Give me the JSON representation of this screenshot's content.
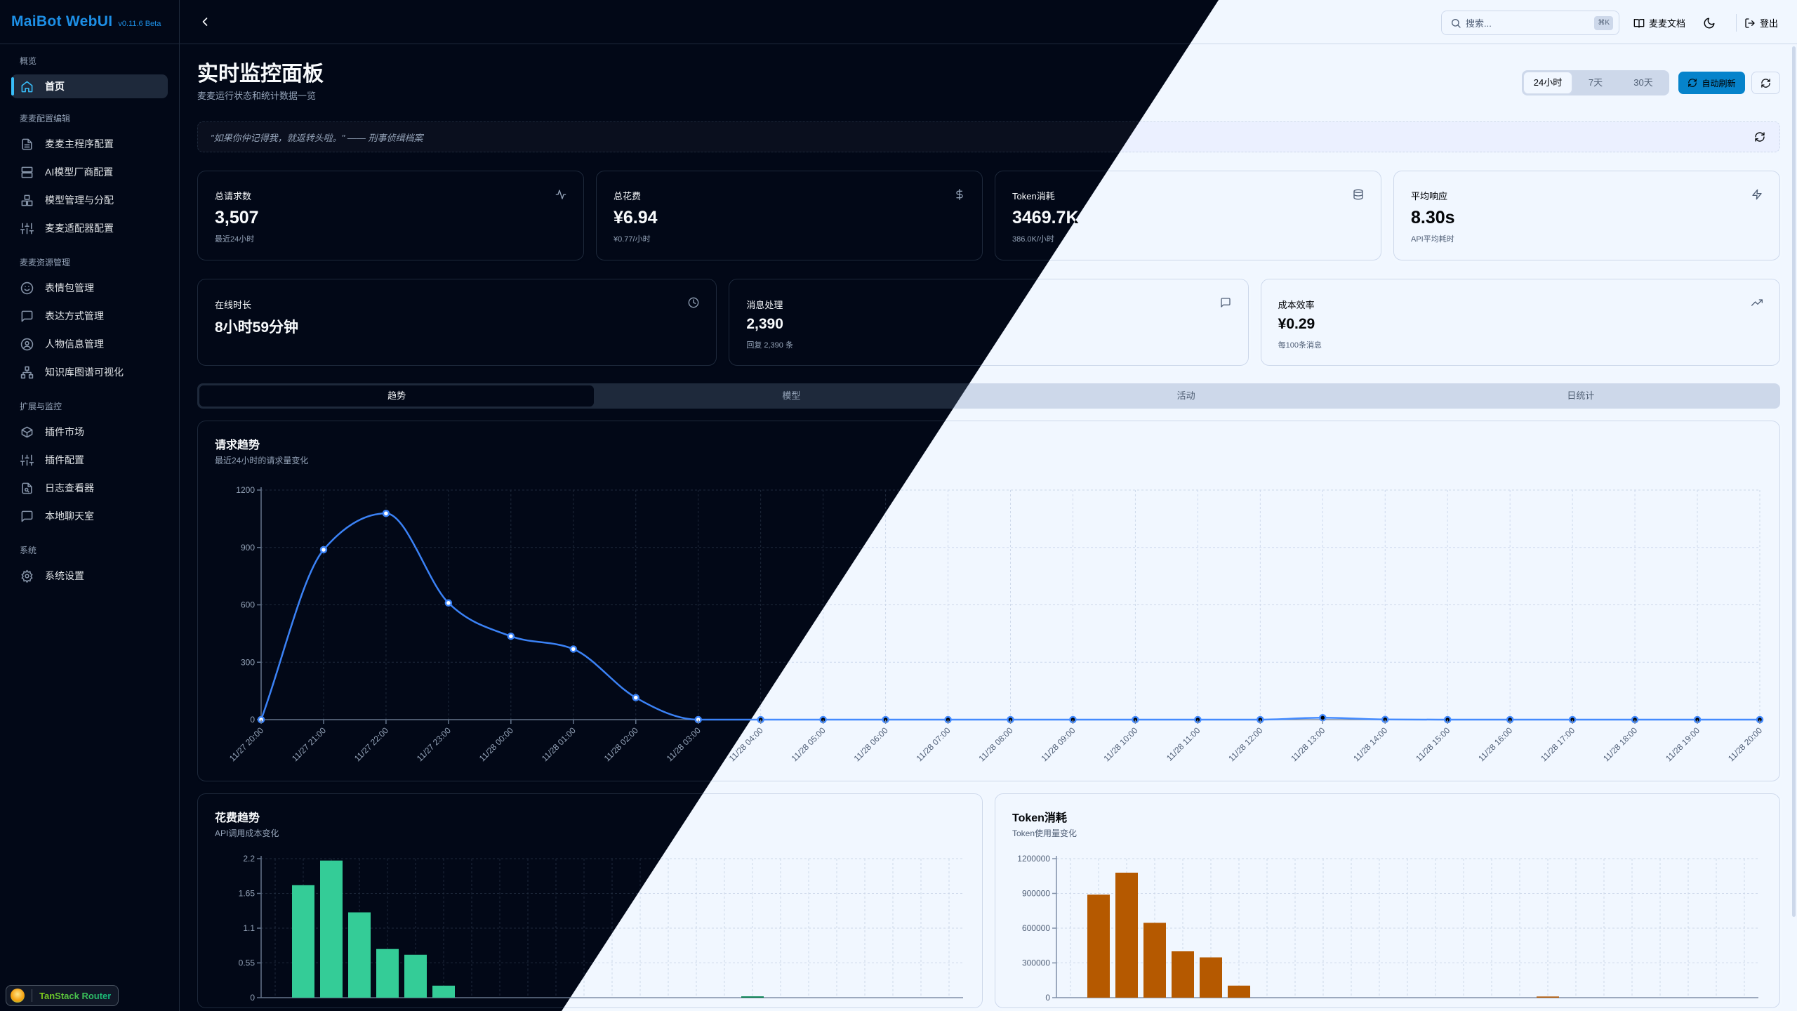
{
  "app": {
    "logo": "MaiBot WebUI",
    "version": "v0.11.6 Beta"
  },
  "sidebar": {
    "sections": [
      {
        "label": "概览",
        "items": [
          {
            "label": "首页",
            "icon": "home",
            "active": true
          }
        ]
      },
      {
        "label": "麦麦配置编辑",
        "items": [
          {
            "label": "麦麦主程序配置",
            "icon": "file-text"
          },
          {
            "label": "AI模型厂商配置",
            "icon": "server"
          },
          {
            "label": "模型管理与分配",
            "icon": "boxes"
          },
          {
            "label": "麦麦适配器配置",
            "icon": "sliders"
          }
        ]
      },
      {
        "label": "麦麦资源管理",
        "items": [
          {
            "label": "表情包管理",
            "icon": "smile"
          },
          {
            "label": "表达方式管理",
            "icon": "message-square"
          },
          {
            "label": "人物信息管理",
            "icon": "user-circle"
          },
          {
            "label": "知识库图谱可视化",
            "icon": "network"
          }
        ]
      },
      {
        "label": "扩展与监控",
        "items": [
          {
            "label": "插件市场",
            "icon": "package"
          },
          {
            "label": "插件配置",
            "icon": "sliders"
          },
          {
            "label": "日志查看器",
            "icon": "file-search"
          },
          {
            "label": "本地聊天室",
            "icon": "message-square"
          }
        ]
      },
      {
        "label": "系统",
        "items": [
          {
            "label": "系统设置",
            "icon": "settings"
          }
        ]
      }
    ]
  },
  "header": {
    "back_icon": "chevron-left",
    "search_icon": "search",
    "search_placeholder": "搜索...",
    "search_shortcut": "⌘K",
    "docs_icon": "book-open",
    "docs_label": "麦麦文档",
    "theme_icon": "moon",
    "logout_icon": "log-out",
    "logout_label": "登出"
  },
  "page": {
    "title": "实时监控面板",
    "subtitle": "麦麦运行状态和统计数据一览"
  },
  "time_range": {
    "options": [
      "24小时",
      "7天",
      "30天"
    ],
    "selected": "24小时"
  },
  "toolbar": {
    "auto_refresh_label": "自动刷新",
    "auto_refresh_icon": "refresh",
    "refresh_icon": "refresh"
  },
  "quote": {
    "text": "\"如果你仲记得我，就返转头啦。\" —— 刑事侦缉档案",
    "refresh_icon": "refresh"
  },
  "stats_row1": [
    {
      "title": "总请求数",
      "value": "3,507",
      "sub": "最近24小时",
      "icon": "activity"
    },
    {
      "title": "总花费",
      "value": "¥6.94",
      "sub": "¥0.77/小时",
      "icon": "dollar"
    },
    {
      "title": "Token消耗",
      "value": "3469.7K",
      "sub": "386.0K/小时",
      "icon": "database"
    },
    {
      "title": "平均响应",
      "value": "8.30s",
      "sub": "API平均耗时",
      "icon": "zap"
    }
  ],
  "stats_row2": [
    {
      "title": "在线时长",
      "value": "8小时59分钟",
      "sub": "",
      "icon": "clock"
    },
    {
      "title": "消息处理",
      "value": "2,390",
      "sub": "回复 2,390 条",
      "icon": "message-square"
    },
    {
      "title": "成本效率",
      "value": "¥0.29",
      "sub": "每100条消息",
      "icon": "trending-up"
    }
  ],
  "tabs": {
    "items": [
      "趋势",
      "模型",
      "活动",
      "日统计"
    ],
    "active": 0
  },
  "charts": {
    "request": {
      "title": "请求趋势",
      "subtitle": "最近24小时的请求量变化"
    },
    "cost": {
      "title": "花费趋势",
      "subtitle": "API调用成本变化"
    },
    "token": {
      "title": "Token消耗",
      "subtitle": "Token使用量变化"
    }
  },
  "devtools": {
    "label": "TanStack Router"
  },
  "colors": {
    "brand": "#1d8fe6",
    "accent": "#2aa7ef",
    "request_line": "#3b82f6",
    "cost_bar": "#34cc97",
    "token_bar": "#e88c30"
  },
  "chart_data": [
    {
      "type": "line",
      "x": [
        "11/27 20:00",
        "11/27 21:00",
        "11/27 22:00",
        "11/27 23:00",
        "11/28 00:00",
        "11/28 01:00",
        "11/28 02:00",
        "11/28 03:00",
        "11/28 04:00",
        "11/28 05:00",
        "11/28 06:00",
        "11/28 07:00",
        "11/28 08:00",
        "11/28 09:00",
        "11/28 10:00",
        "11/28 11:00",
        "11/28 12:00",
        "11/28 13:00",
        "11/28 14:00",
        "11/28 15:00",
        "11/28 16:00",
        "11/28 17:00",
        "11/28 18:00",
        "11/28 19:00",
        "11/28 20:00"
      ],
      "values": [
        0,
        888,
        1078,
        610,
        436,
        369,
        115,
        0,
        0,
        0,
        0,
        0,
        0,
        0,
        0,
        0,
        0,
        10,
        1,
        0,
        0,
        0,
        0,
        0,
        0
      ],
      "ylim": [
        0,
        1200
      ],
      "yticks": [
        0,
        300,
        600,
        900,
        1200
      ],
      "grid": true
    },
    {
      "type": "bar",
      "x": [
        "11/27 20:00",
        "11/27 21:00",
        "11/27 22:00",
        "11/27 23:00",
        "11/28 00:00",
        "11/28 01:00",
        "11/28 02:00",
        "11/28 03:00",
        "11/28 04:00",
        "11/28 05:00",
        "11/28 06:00",
        "11/28 07:00",
        "11/28 08:00",
        "11/28 09:00",
        "11/28 10:00",
        "11/28 11:00",
        "11/28 12:00",
        "11/28 13:00",
        "11/28 14:00",
        "11/28 15:00",
        "11/28 16:00",
        "11/28 17:00",
        "11/28 18:00",
        "11/28 19:00",
        "11/28 20:00"
      ],
      "values": [
        0,
        1.78,
        2.17,
        1.35,
        0.77,
        0.68,
        0.19,
        0,
        0,
        0,
        0,
        0,
        0,
        0,
        0,
        0,
        0,
        0.02,
        0,
        0,
        0,
        0,
        0,
        0,
        0
      ],
      "ylim": [
        0,
        2.2
      ],
      "yticks": [
        0,
        0.55,
        1.1,
        1.65,
        2.2
      ],
      "grid": true
    },
    {
      "type": "bar",
      "x": [
        "11/27 20:00",
        "11/27 21:00",
        "11/27 22:00",
        "11/27 23:00",
        "11/28 00:00",
        "11/28 01:00",
        "11/28 02:00",
        "11/28 03:00",
        "11/28 04:00",
        "11/28 05:00",
        "11/28 06:00",
        "11/28 07:00",
        "11/28 08:00",
        "11/28 09:00",
        "11/28 10:00",
        "11/28 11:00",
        "11/28 12:00",
        "11/28 13:00",
        "11/28 14:00",
        "11/28 15:00",
        "11/28 16:00",
        "11/28 17:00",
        "11/28 18:00",
        "11/28 19:00",
        "11/28 20:00"
      ],
      "values": [
        0,
        889000,
        1079000,
        646000,
        400000,
        348000,
        104000,
        0,
        0,
        0,
        0,
        0,
        0,
        0,
        0,
        0,
        0,
        10000,
        0,
        0,
        0,
        0,
        0,
        0,
        0
      ],
      "ylim": [
        0,
        1200000
      ],
      "yticks": [
        0,
        300000,
        600000,
        900000,
        1200000
      ],
      "grid": true
    }
  ]
}
